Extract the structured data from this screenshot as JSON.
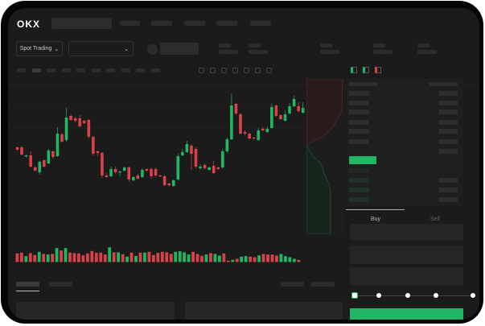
{
  "brand": {
    "logo": "OKX"
  },
  "market": {
    "mode_label": "Spot Trading",
    "chevron": "chevron-down-icon"
  },
  "order_form": {
    "buy_tab": "Buy",
    "sell_tab": "Sell",
    "leverage_stops": [
      0,
      25,
      50,
      75,
      100
    ],
    "selected_stop": 0
  },
  "colors": {
    "up": "#21b663",
    "down": "#d8434a",
    "background": "#1b1b1b",
    "buy_button": "#21b663"
  },
  "chart_data": {
    "type": "candlestick",
    "title": "",
    "xlabel": "",
    "ylabel": "",
    "ylim": [
      0,
      140
    ],
    "grid": true,
    "candles_ohlc": [
      [
        68,
        69,
        64,
        65
      ],
      [
        68,
        70,
        58,
        59
      ],
      [
        57,
        59,
        55,
        58
      ],
      [
        58,
        63,
        43,
        44
      ],
      [
        43,
        45,
        38,
        39
      ],
      [
        37,
        51,
        34,
        50
      ],
      [
        52,
        53,
        43,
        44
      ],
      [
        48,
        66,
        47,
        64
      ],
      [
        63,
        64,
        54,
        56
      ],
      [
        57,
        93,
        56,
        85
      ],
      [
        84,
        86,
        74,
        75
      ],
      [
        77,
        117,
        75,
        105
      ],
      [
        107,
        109,
        101,
        102
      ],
      [
        104,
        106,
        99,
        101
      ],
      [
        104,
        108,
        93,
        94
      ],
      [
        101,
        102,
        97,
        98
      ],
      [
        102,
        103,
        79,
        81
      ],
      [
        81,
        82,
        58,
        60
      ],
      [
        63,
        64,
        57,
        61
      ],
      [
        61,
        62,
        30,
        33
      ],
      [
        33,
        36,
        30,
        31
      ],
      [
        32,
        44,
        31,
        41
      ],
      [
        41,
        44,
        35,
        37
      ],
      [
        37,
        39,
        32,
        38
      ],
      [
        39,
        44,
        38,
        43
      ],
      [
        43,
        44,
        25,
        28
      ],
      [
        27,
        32,
        26,
        31
      ],
      [
        33,
        35,
        28,
        29
      ],
      [
        31,
        42,
        30,
        40
      ],
      [
        41,
        42,
        38,
        39
      ],
      [
        41,
        43,
        29,
        32
      ],
      [
        41,
        43,
        31,
        33
      ],
      [
        33,
        34,
        31,
        32
      ],
      [
        32,
        34,
        20,
        21
      ],
      [
        23,
        24,
        19,
        21
      ],
      [
        20,
        28,
        19,
        27
      ],
      [
        28,
        60,
        27,
        57
      ],
      [
        58,
        66,
        57,
        62
      ],
      [
        62,
        76,
        61,
        72
      ],
      [
        70,
        72,
        40,
        60
      ],
      [
        66,
        68,
        42,
        44
      ],
      [
        42,
        47,
        40,
        44
      ],
      [
        46,
        48,
        40,
        42
      ],
      [
        40,
        44,
        39,
        43
      ],
      [
        45,
        51,
        35,
        36
      ],
      [
        43,
        44,
        40,
        41
      ],
      [
        43,
        66,
        41,
        63
      ],
      [
        63,
        80,
        61,
        78
      ],
      [
        78,
        135,
        77,
        120
      ],
      [
        122,
        123,
        108,
        110
      ],
      [
        109,
        111,
        84,
        85
      ],
      [
        87,
        89,
        83,
        85
      ],
      [
        85,
        86,
        78,
        79
      ],
      [
        80,
        81,
        78,
        79
      ],
      [
        77,
        92,
        76,
        89
      ],
      [
        91,
        93,
        88,
        89
      ],
      [
        87,
        94,
        86,
        91
      ],
      [
        92,
        122,
        91,
        118
      ],
      [
        120,
        121,
        106,
        107
      ],
      [
        108,
        109,
        102,
        103
      ],
      [
        101,
        114,
        100,
        109
      ],
      [
        110,
        123,
        109,
        119
      ],
      [
        119,
        132,
        118,
        128
      ],
      [
        119,
        124,
        111,
        113
      ],
      [
        111,
        124,
        110,
        117
      ]
    ],
    "volume": [
      {
        "v": 32,
        "d": "down"
      },
      {
        "v": 35,
        "d": "down"
      },
      {
        "v": 22,
        "d": "up"
      },
      {
        "v": 33,
        "d": "down"
      },
      {
        "v": 26,
        "d": "down"
      },
      {
        "v": 38,
        "d": "up"
      },
      {
        "v": 30,
        "d": "down"
      },
      {
        "v": 28,
        "d": "up"
      },
      {
        "v": 30,
        "d": "down"
      },
      {
        "v": 52,
        "d": "up"
      },
      {
        "v": 43,
        "d": "down"
      },
      {
        "v": 52,
        "d": "up"
      },
      {
        "v": 35,
        "d": "down"
      },
      {
        "v": 33,
        "d": "down"
      },
      {
        "v": 32,
        "d": "down"
      },
      {
        "v": 25,
        "d": "down"
      },
      {
        "v": 32,
        "d": "down"
      },
      {
        "v": 41,
        "d": "down"
      },
      {
        "v": 34,
        "d": "down"
      },
      {
        "v": 35,
        "d": "down"
      },
      {
        "v": 28,
        "d": "down"
      },
      {
        "v": 55,
        "d": "up"
      },
      {
        "v": 36,
        "d": "down"
      },
      {
        "v": 36,
        "d": "up"
      },
      {
        "v": 29,
        "d": "down"
      },
      {
        "v": 20,
        "d": "up"
      },
      {
        "v": 35,
        "d": "down"
      },
      {
        "v": 23,
        "d": "up"
      },
      {
        "v": 35,
        "d": "down"
      },
      {
        "v": 35,
        "d": "up"
      },
      {
        "v": 38,
        "d": "down"
      },
      {
        "v": 26,
        "d": "down"
      },
      {
        "v": 34,
        "d": "down"
      },
      {
        "v": 38,
        "d": "down"
      },
      {
        "v": 36,
        "d": "down"
      },
      {
        "v": 30,
        "d": "down"
      },
      {
        "v": 38,
        "d": "up"
      },
      {
        "v": 40,
        "d": "up"
      },
      {
        "v": 36,
        "d": "up"
      },
      {
        "v": 28,
        "d": "up"
      },
      {
        "v": 38,
        "d": "down"
      },
      {
        "v": 30,
        "d": "down"
      },
      {
        "v": 23,
        "d": "down"
      },
      {
        "v": 28,
        "d": "up"
      },
      {
        "v": 33,
        "d": "down"
      },
      {
        "v": 30,
        "d": "up"
      },
      {
        "v": 24,
        "d": "up"
      },
      {
        "v": 32,
        "d": "down"
      },
      {
        "v": 5,
        "d": "down"
      },
      {
        "v": 8,
        "d": "up"
      },
      {
        "v": 12,
        "d": "down"
      },
      {
        "v": 20,
        "d": "up"
      },
      {
        "v": 22,
        "d": "up"
      },
      {
        "v": 20,
        "d": "down"
      },
      {
        "v": 18,
        "d": "down"
      },
      {
        "v": 25,
        "d": "up"
      },
      {
        "v": 30,
        "d": "down"
      },
      {
        "v": 28,
        "d": "down"
      },
      {
        "v": 28,
        "d": "down"
      },
      {
        "v": 24,
        "d": "down"
      },
      {
        "v": 30,
        "d": "up"
      },
      {
        "v": 22,
        "d": "up"
      },
      {
        "v": 18,
        "d": "up"
      },
      {
        "v": 12,
        "d": "up"
      },
      {
        "v": 8,
        "d": "down"
      }
    ]
  }
}
